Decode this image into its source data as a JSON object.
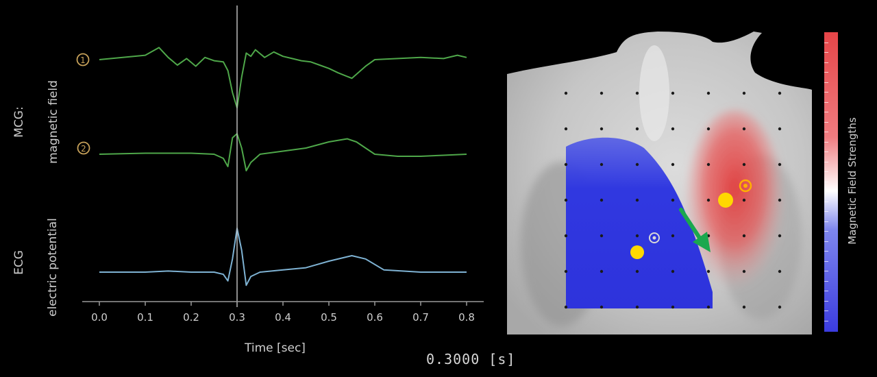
{
  "labels": {
    "mcg_title": "MCG:",
    "mcg_subtitle": "magnetic field",
    "ecg_title": "ECG",
    "ecg_subtitle": "electric potential",
    "x_axis_title": "Time [sec]",
    "time_readout": "0.3000 [s]",
    "colorbar_label": "Magnetic Field Strengths",
    "marker_1": "1",
    "marker_2": "2"
  },
  "colors": {
    "mcg_trace": "#4fa84a",
    "ecg_trace": "#7fb3d4",
    "cursor": "#bdbdbd",
    "positive_field": "#e23b3b",
    "negative_field": "#2f35e0",
    "arrow": "#1aa84e",
    "marker_dot": "#ffd800"
  },
  "time_axis": {
    "ticks": [
      "0.0",
      "0.1",
      "0.2",
      "0.3",
      "0.4",
      "0.5",
      "0.6",
      "0.7",
      "0.8"
    ],
    "range": [
      0,
      0.8
    ],
    "cursor_time": 0.3
  },
  "chart_data": {
    "type": "line",
    "xlabel": "Time [sec]",
    "xlim": [
      0,
      0.8
    ],
    "series": [
      {
        "x": [
          0.0,
          0.1,
          0.13,
          0.15,
          0.17,
          0.19,
          0.21,
          0.23,
          0.25,
          0.27,
          0.28,
          0.29,
          0.3,
          0.31,
          0.32,
          0.33,
          0.34,
          0.36,
          0.38,
          0.4,
          0.42,
          0.44,
          0.46,
          0.48,
          0.5,
          0.52,
          0.55,
          0.58,
          0.6,
          0.65,
          0.7,
          0.75,
          0.78,
          0.8
        ],
        "y": [
          0.0,
          0.2,
          0.55,
          0.1,
          -0.25,
          0.05,
          -0.3,
          0.1,
          -0.05,
          -0.1,
          -0.5,
          -1.5,
          -2.2,
          -0.8,
          0.3,
          0.15,
          0.45,
          0.1,
          0.35,
          0.15,
          0.05,
          -0.05,
          -0.1,
          -0.25,
          -0.4,
          -0.6,
          -0.85,
          -0.3,
          0.0,
          0.05,
          0.1,
          0.05,
          0.2,
          0.1
        ]
      },
      {
        "x": [
          0.0,
          0.1,
          0.2,
          0.25,
          0.27,
          0.28,
          0.29,
          0.3,
          0.31,
          0.32,
          0.33,
          0.35,
          0.4,
          0.45,
          0.5,
          0.54,
          0.56,
          0.6,
          0.65,
          0.7,
          0.75,
          0.8
        ],
        "y": [
          0.0,
          0.05,
          0.05,
          0.0,
          -0.2,
          -0.6,
          0.8,
          1.0,
          0.3,
          -0.8,
          -0.4,
          0.0,
          0.15,
          0.3,
          0.6,
          0.75,
          0.6,
          0.0,
          -0.1,
          -0.1,
          -0.05,
          0.0
        ]
      },
      {
        "x": [
          0.0,
          0.1,
          0.15,
          0.2,
          0.25,
          0.27,
          0.28,
          0.29,
          0.3,
          0.31,
          0.32,
          0.33,
          0.35,
          0.4,
          0.45,
          0.5,
          0.55,
          0.58,
          0.62,
          0.7,
          0.8
        ],
        "y": [
          0.0,
          0.0,
          0.05,
          0.0,
          0.0,
          -0.1,
          -0.4,
          0.6,
          2.0,
          1.0,
          -0.6,
          -0.2,
          0.0,
          0.1,
          0.2,
          0.5,
          0.75,
          0.6,
          0.1,
          0.0,
          0.0
        ]
      }
    ]
  }
}
